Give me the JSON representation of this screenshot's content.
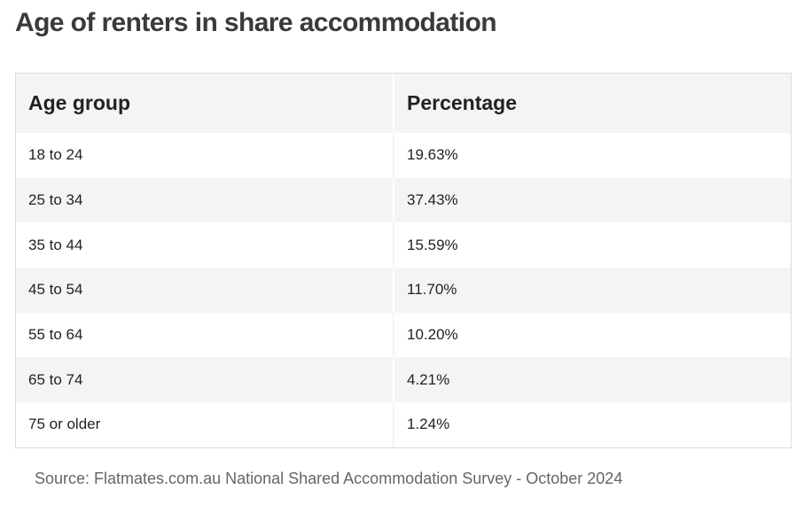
{
  "title": "Age of renters in share accommodation",
  "chart_data": {
    "type": "table",
    "columns": [
      "Age group",
      "Percentage"
    ],
    "rows": [
      {
        "age_group": "18 to 24",
        "percentage": "19.63%",
        "value": 19.63
      },
      {
        "age_group": "25 to 34",
        "percentage": "37.43%",
        "value": 37.43
      },
      {
        "age_group": "35 to 44",
        "percentage": "15.59%",
        "value": 15.59
      },
      {
        "age_group": "45 to 54",
        "percentage": "11.70%",
        "value": 11.7
      },
      {
        "age_group": "55 to 64",
        "percentage": "10.20%",
        "value": 10.2
      },
      {
        "age_group": "65 to 74",
        "percentage": "4.21%",
        "value": 4.21
      },
      {
        "age_group": "75 or older",
        "percentage": "1.24%",
        "value": 1.24
      }
    ]
  },
  "source": "Source: Flatmates.com.au National Shared Accommodation Survey - October 2024",
  "colors": {
    "header_bg": "#f4f4f4",
    "stripe_bg": "#f4f4f4",
    "title_text": "#3a3a3a",
    "source_text": "#666666"
  }
}
